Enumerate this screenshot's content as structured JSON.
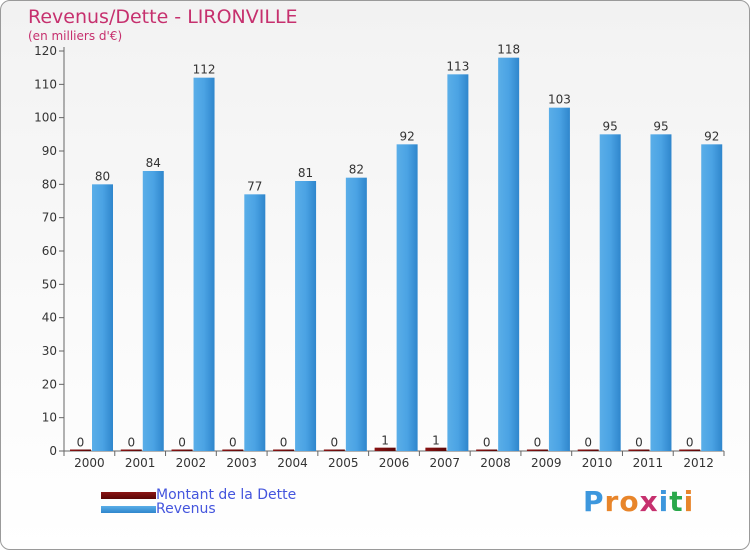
{
  "header": {
    "title": "Revenus/Dette - LIRONVILLE",
    "subtitle": "(en milliers d'€)"
  },
  "colors": {
    "title": "#c6306e",
    "revenus": "#3d97dd",
    "dette": "#6b0a0a",
    "legend_text": "#4455dd"
  },
  "legend": {
    "dette_label": "Montant de la Dette",
    "revenus_label": "Revenus"
  },
  "logo": {
    "text": "Proxiti"
  },
  "chart_data": {
    "type": "bar",
    "categories": [
      "2000",
      "2001",
      "2002",
      "2003",
      "2004",
      "2005",
      "2006",
      "2007",
      "2008",
      "2009",
      "2010",
      "2011",
      "2012"
    ],
    "series": [
      {
        "name": "Montant de la Dette",
        "values": [
          0,
          0,
          0,
          0,
          0,
          0,
          1,
          1,
          0,
          0,
          0,
          0,
          0
        ]
      },
      {
        "name": "Revenus",
        "values": [
          80,
          84,
          112,
          77,
          81,
          82,
          92,
          113,
          118,
          103,
          95,
          95,
          92
        ]
      }
    ],
    "title": "Revenus/Dette - LIRONVILLE",
    "ylabel": "(en milliers d'€)",
    "ylim": [
      0,
      120
    ],
    "yticks": [
      0,
      10,
      20,
      30,
      40,
      50,
      60,
      70,
      80,
      90,
      100,
      110,
      120
    ],
    "grid": false,
    "legend_position": "bottom-left"
  }
}
